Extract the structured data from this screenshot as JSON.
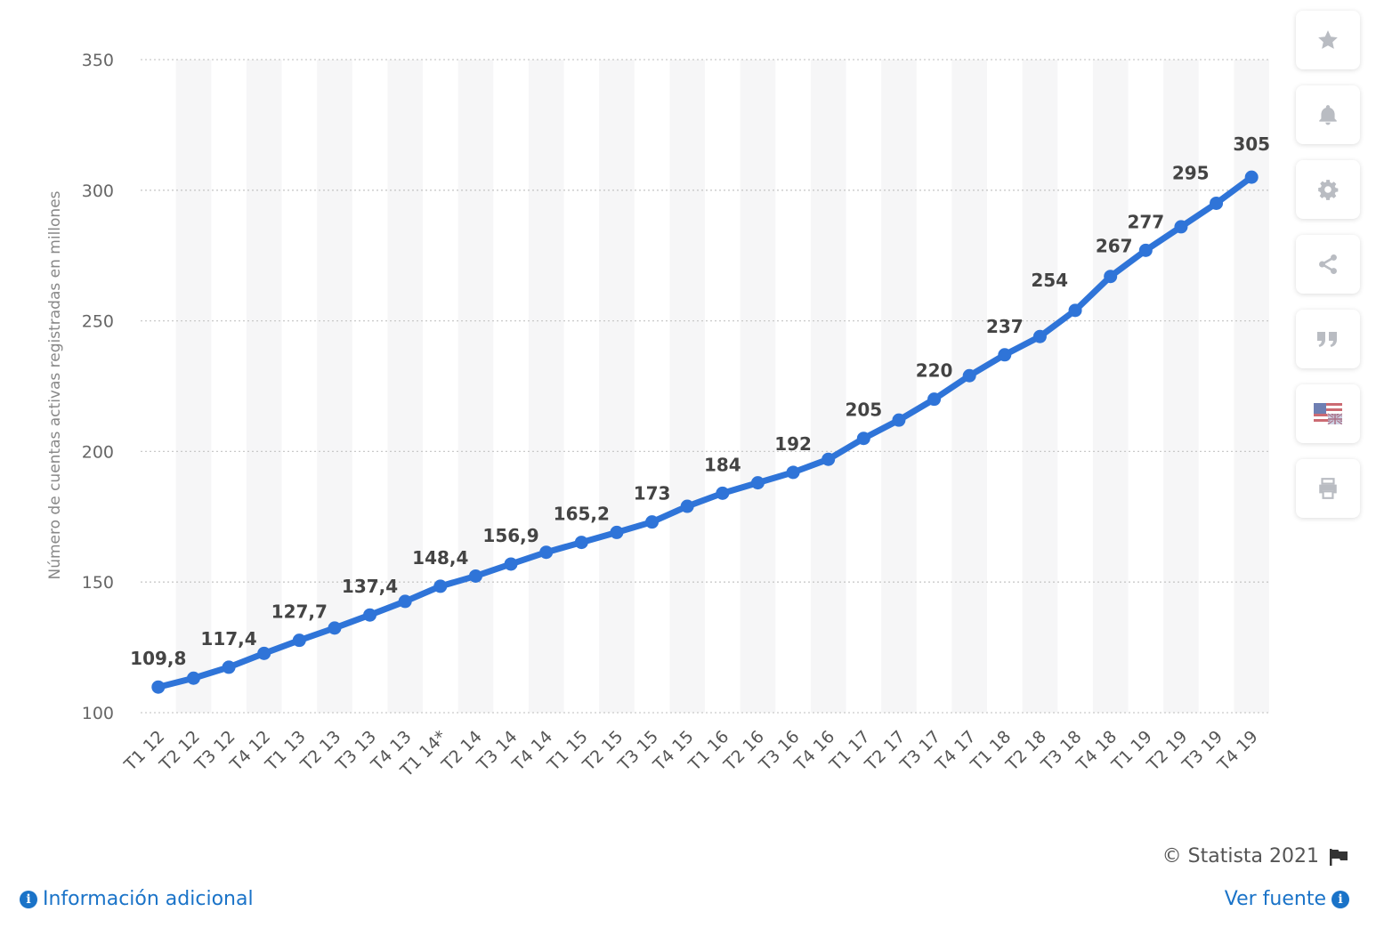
{
  "chart_data": {
    "type": "line",
    "title": "",
    "xlabel": "",
    "ylabel": "Número de cuentas activas registradas en millones",
    "ylim": [
      100,
      350
    ],
    "yticks": [
      100,
      150,
      200,
      250,
      300,
      350
    ],
    "ytick_labels": [
      "100",
      "150",
      "200",
      "250",
      "300",
      "350"
    ],
    "grid": "horizontal dotted",
    "categories": [
      "T1 12",
      "T2 12",
      "T3 12",
      "T4 12",
      "T1 13",
      "T2 13",
      "T3 13",
      "T4 13",
      "T1 14*",
      "T2 14",
      "T3 14",
      "T4 14",
      "T1 15",
      "T2 15",
      "T3 15",
      "T4 15",
      "T1 16",
      "T2 16",
      "T3 16",
      "T4 16",
      "T1 17",
      "T2 17",
      "T3 17",
      "T4 17",
      "T1 18",
      "T2 18",
      "T3 18",
      "T4 18",
      "T1 19",
      "T2 19",
      "T3 19",
      "T4 19"
    ],
    "series": [
      {
        "values": [
          109.8,
          113.2,
          117.4,
          122.7,
          127.7,
          132.4,
          137.4,
          142.6,
          148.4,
          152.3,
          156.9,
          161.4,
          165.2,
          169,
          173,
          179,
          184,
          188,
          192,
          197,
          205,
          212,
          220,
          229,
          237,
          244,
          254,
          267,
          277,
          286,
          295,
          305
        ],
        "color": "#2f74d8"
      }
    ],
    "data_labels": [
      {
        "index": 0,
        "text": "109,8"
      },
      {
        "index": 2,
        "text": "117,4"
      },
      {
        "index": 4,
        "text": "127,7"
      },
      {
        "index": 6,
        "text": "137,4"
      },
      {
        "index": 8,
        "text": "148,4"
      },
      {
        "index": 10,
        "text": "156,9"
      },
      {
        "index": 12,
        "text": "165,2"
      },
      {
        "index": 14,
        "text": "173"
      },
      {
        "index": 16,
        "text": "184"
      },
      {
        "index": 18,
        "text": "192"
      },
      {
        "index": 20,
        "text": "205"
      },
      {
        "index": 22,
        "text": "220"
      },
      {
        "index": 24,
        "text": "237"
      },
      {
        "index": 26,
        "text": "254"
      },
      {
        "index": 27,
        "text": "267"
      },
      {
        "index": 28,
        "text": "277"
      },
      {
        "index": 30,
        "text": "295"
      },
      {
        "index": 31,
        "text": "305"
      }
    ]
  },
  "sidebar": {
    "buttons": [
      {
        "icon": "star-icon"
      },
      {
        "icon": "bell-icon"
      },
      {
        "icon": "gear-icon"
      },
      {
        "icon": "share-icon"
      },
      {
        "icon": "quote-icon"
      },
      {
        "icon": "flag-icon"
      },
      {
        "icon": "print-icon"
      }
    ]
  },
  "footer": {
    "copyright": "© Statista 2021",
    "info_link": "Información adicional",
    "source_link": "Ver fuente"
  },
  "colors": {
    "line": "#2f74d8",
    "link": "#1a73c8",
    "band": "#f6f6f7",
    "icon": "#b9bcc2"
  }
}
